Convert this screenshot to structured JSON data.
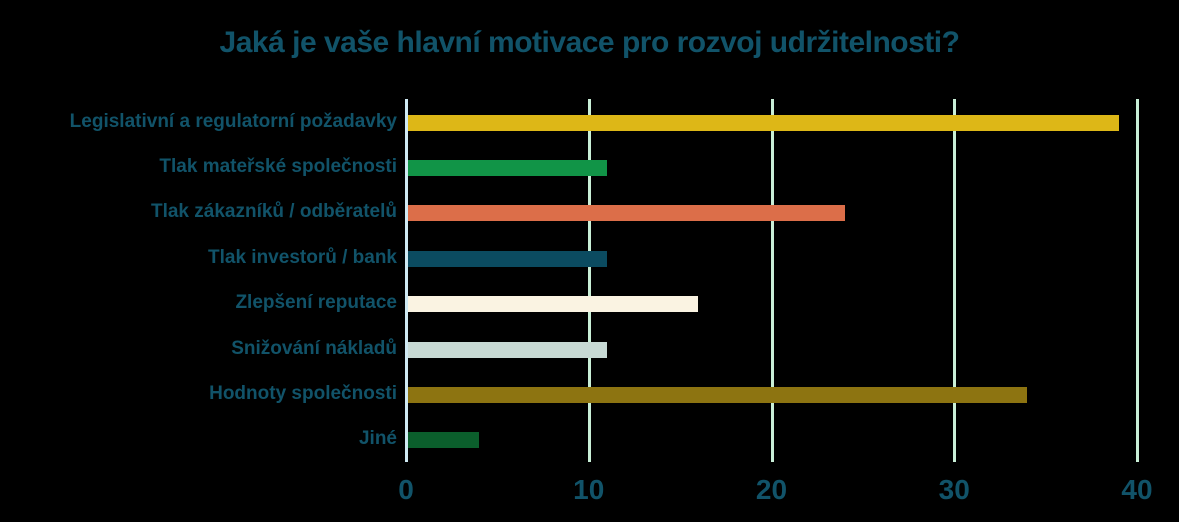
{
  "chart_data": {
    "type": "bar",
    "orientation": "horizontal",
    "title": "Jaká je vaše hlavní motivace pro rozvoj udržitelnosti?",
    "categories": [
      "Legislativní a regulatorní požadavky",
      "Tlak mateřské společnosti",
      "Tlak zákazníků / odběratelů",
      "Tlak investorů / bank",
      "Zlepšení reputace",
      "Snižování nákladů",
      "Hodnoty společnosti",
      "Jiné"
    ],
    "values": [
      39,
      11,
      24,
      11,
      16,
      11,
      34,
      4
    ],
    "bar_colors": [
      "#ddb717",
      "#119447",
      "#dc6e49",
      "#0b4b60",
      "#faf3e2",
      "#c7d9d4",
      "#8d7411",
      "#0b5e2c"
    ],
    "xlabel": "",
    "ylabel": "",
    "xlim": [
      0,
      42.3
    ],
    "xticks": [
      0,
      10,
      20,
      30,
      40
    ],
    "grid": true,
    "legend": false,
    "colors": {
      "background": "#000000",
      "text": "#115369",
      "gridline": "#c9efd7",
      "zero_axis_line": "#cfe9f3"
    }
  }
}
